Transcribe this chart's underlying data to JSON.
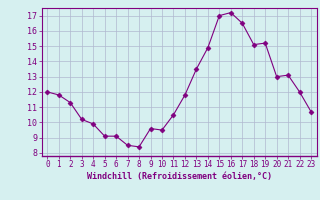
{
  "x": [
    0,
    1,
    2,
    3,
    4,
    5,
    6,
    7,
    8,
    9,
    10,
    11,
    12,
    13,
    14,
    15,
    16,
    17,
    18,
    19,
    20,
    21,
    22,
    23
  ],
  "y": [
    12.0,
    11.8,
    11.3,
    10.2,
    9.9,
    9.1,
    9.1,
    8.5,
    8.4,
    9.6,
    9.5,
    10.5,
    11.8,
    13.5,
    14.9,
    17.0,
    17.2,
    16.5,
    15.1,
    15.2,
    13.0,
    13.1,
    12.0,
    10.7
  ],
  "xlabel": "Windchill (Refroidissement éolien,°C)",
  "xlim": [
    -0.5,
    23.5
  ],
  "ylim": [
    7.8,
    17.5
  ],
  "yticks": [
    8,
    9,
    10,
    11,
    12,
    13,
    14,
    15,
    16,
    17
  ],
  "xticks": [
    0,
    1,
    2,
    3,
    4,
    5,
    6,
    7,
    8,
    9,
    10,
    11,
    12,
    13,
    14,
    15,
    16,
    17,
    18,
    19,
    20,
    21,
    22,
    23
  ],
  "line_color": "#800080",
  "marker": "D",
  "marker_size": 2.5,
  "bg_color": "#d6f0f0",
  "grid_color": "#b0b8d0",
  "axis_label_color": "#800080",
  "tick_color": "#800080",
  "spine_color": "#800080"
}
